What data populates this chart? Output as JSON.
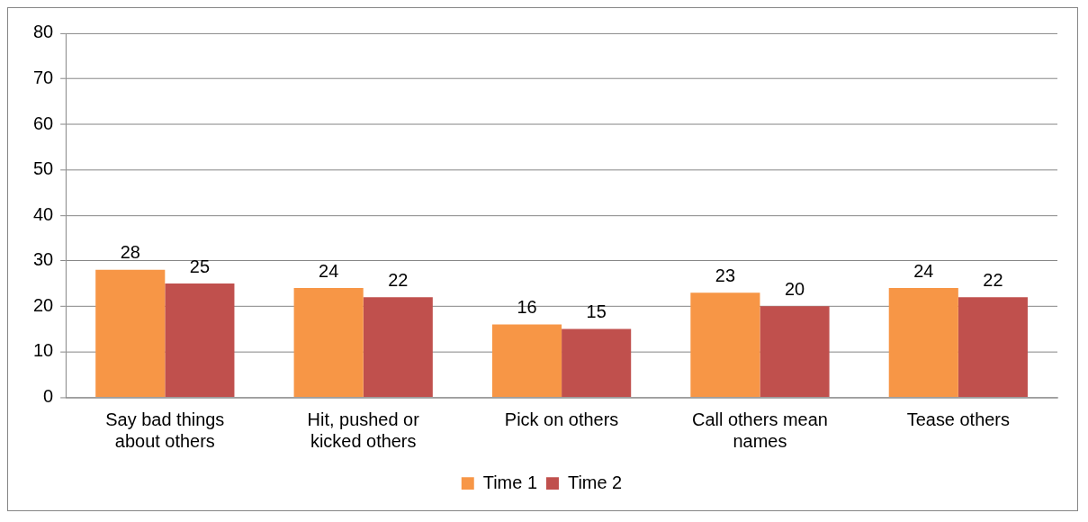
{
  "chart_data": {
    "type": "bar",
    "categories": [
      "Say bad things about others",
      "Hit, pushed or kicked others",
      "Pick on others",
      "Call others mean names",
      "Tease others"
    ],
    "series": [
      {
        "name": "Time 1",
        "color": "#f79646",
        "values": [
          28,
          24,
          16,
          23,
          24
        ]
      },
      {
        "name": "Time 2",
        "color": "#c0504d",
        "values": [
          25,
          22,
          15,
          20,
          22
        ]
      }
    ],
    "ylim": [
      0,
      80
    ],
    "yticks": [
      0,
      10,
      20,
      30,
      40,
      50,
      60,
      70,
      80
    ],
    "grid": "y",
    "legend": "bottom",
    "data_labels": true
  }
}
